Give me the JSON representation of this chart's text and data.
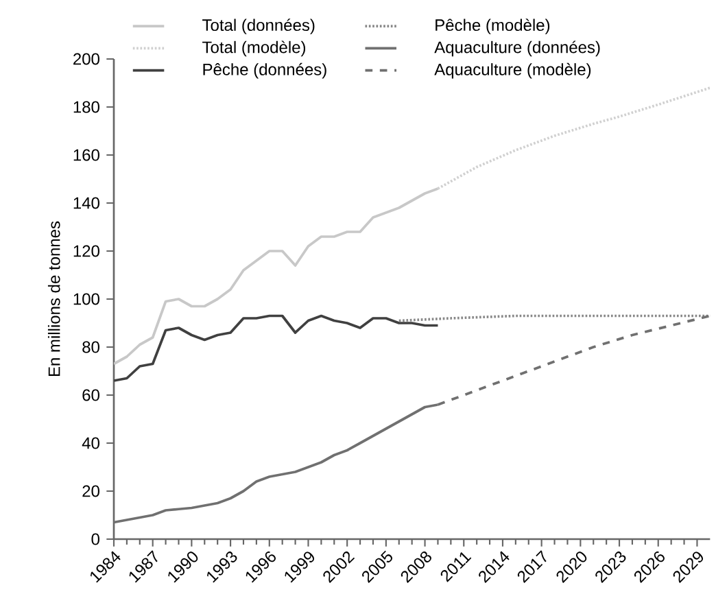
{
  "chart_data": {
    "type": "line",
    "ylabel": "En millions de tonnes",
    "xlim": [
      1984,
      2030
    ],
    "xticks": [
      1984,
      1987,
      1990,
      1993,
      1996,
      1999,
      2002,
      2005,
      2008,
      2011,
      2014,
      2017,
      2020,
      2023,
      2026,
      2029
    ],
    "ylim": [
      0,
      200
    ],
    "yticks": [
      0,
      20,
      40,
      60,
      80,
      100,
      120,
      140,
      160,
      180,
      200
    ],
    "grid": false,
    "legend": "top left",
    "marker": "none",
    "series": [
      {
        "name": "Total (données)",
        "color": "#c8c8c8",
        "line_style": "solid",
        "x": [
          1984,
          1985,
          1986,
          1987,
          1988,
          1989,
          1990,
          1991,
          1992,
          1993,
          1994,
          1995,
          1996,
          1997,
          1998,
          1999,
          2000,
          2001,
          2002,
          2003,
          2004,
          2005,
          2006,
          2007,
          2008,
          2009
        ],
        "values": [
          73,
          76,
          81,
          84,
          99,
          100,
          97,
          97,
          100,
          104,
          112,
          116,
          120,
          120,
          114,
          122,
          126,
          126,
          128,
          128,
          134,
          136,
          138,
          141,
          144,
          146
        ]
      },
      {
        "name": "Total (modèle)",
        "color": "#d0d0d0",
        "line_style": "dotted",
        "x": [
          2009,
          2012,
          2015,
          2018,
          2021,
          2023,
          2026,
          2030
        ],
        "values": [
          146,
          155,
          162,
          168,
          173,
          176,
          181,
          188
        ]
      },
      {
        "name": "Pêche (données)",
        "color": "#404040",
        "line_style": "solid",
        "x": [
          1984,
          1985,
          1986,
          1987,
          1988,
          1989,
          1990,
          1991,
          1992,
          1993,
          1994,
          1995,
          1996,
          1997,
          1998,
          1999,
          2000,
          2001,
          2002,
          2003,
          2004,
          2005,
          2006,
          2007,
          2008,
          2009
        ],
        "values": [
          66,
          67,
          72,
          73,
          87,
          88,
          85,
          83,
          85,
          86,
          92,
          92,
          93,
          93,
          86,
          91,
          93,
          91,
          90,
          88,
          92,
          92,
          90,
          90,
          89,
          89
        ]
      },
      {
        "name": "Pêche (modèle)",
        "color": "#888888",
        "line_style": "dotted",
        "x": [
          2006,
          2010,
          2015,
          2020,
          2025,
          2030
        ],
        "values": [
          91,
          92,
          93,
          93,
          93,
          93
        ]
      },
      {
        "name": "Aquaculture (données)",
        "color": "#707070",
        "line_style": "solid",
        "x": [
          1984,
          1985,
          1986,
          1987,
          1988,
          1989,
          1990,
          1991,
          1992,
          1993,
          1994,
          1995,
          1996,
          1997,
          1998,
          1999,
          2000,
          2001,
          2002,
          2003,
          2004,
          2005,
          2006,
          2007,
          2008,
          2009
        ],
        "values": [
          7,
          8,
          9,
          10,
          12,
          12.5,
          13,
          14,
          15,
          17,
          20,
          24,
          26,
          27,
          28,
          30,
          32,
          35,
          37,
          40,
          43,
          46,
          49,
          52,
          55,
          56
        ]
      },
      {
        "name": "Aquaculture (modèle)",
        "color": "#707070",
        "line_style": "dashed",
        "x": [
          2009,
          2012,
          2015,
          2018,
          2021,
          2024,
          2027,
          2030
        ],
        "values": [
          56,
          62,
          68,
          74,
          80,
          85,
          89,
          93
        ]
      }
    ]
  }
}
